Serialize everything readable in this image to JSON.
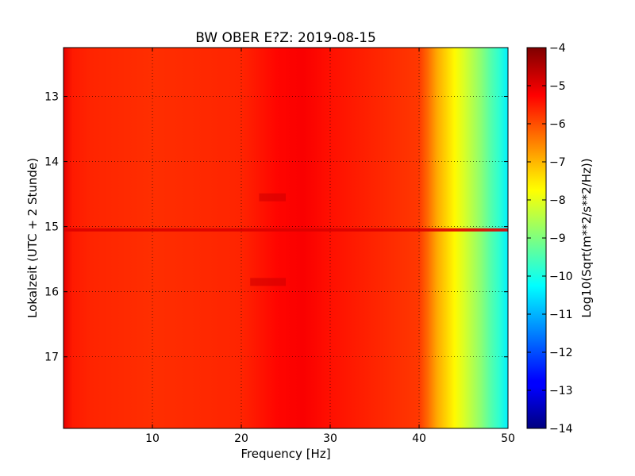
{
  "chart_data": {
    "type": "heatmap",
    "title": "BW OBER E?Z: 2019-08-15",
    "xlabel": "Frequency [Hz]",
    "ylabel": "Lokalzeit (UTC + 2 Stunde)",
    "xlim": [
      0,
      50
    ],
    "ylim": [
      12.25,
      18.1
    ],
    "y_inverted": true,
    "grid": true,
    "x_ticks": [
      10,
      20,
      30,
      40,
      50
    ],
    "y_ticks": [
      13,
      14,
      15,
      16,
      17
    ],
    "colormap": "jet",
    "colorbar": {
      "label": "Log10(Sqrt(m**2/s**2/Hz))",
      "range": [
        -14,
        -4
      ],
      "ticks": [
        -4,
        -5,
        -6,
        -7,
        -8,
        -9,
        -10,
        -11,
        -12,
        -13,
        -14
      ]
    },
    "value_profile_vs_frequency": {
      "frequency_hz": [
        0,
        1,
        3,
        10,
        20,
        24,
        27,
        30,
        35,
        40,
        41,
        42,
        43,
        44,
        45,
        46,
        47,
        48,
        49,
        50
      ],
      "log10_amplitude": [
        -5.0,
        -5.5,
        -5.6,
        -5.7,
        -5.6,
        -5.3,
        -5.2,
        -5.4,
        -5.6,
        -5.8,
        -6.3,
        -6.9,
        -7.3,
        -7.7,
        -8.1,
        -8.5,
        -8.9,
        -9.4,
        -9.8,
        -10.4
      ]
    },
    "noted_features": [
      {
        "time": 15.05,
        "frequency_range_hz": [
          0,
          50
        ],
        "log10_amplitude": -4.9
      },
      {
        "time": 14.55,
        "frequency_range_hz": [
          22,
          25
        ],
        "log10_amplitude": -4.8
      },
      {
        "time": 15.85,
        "frequency_range_hz": [
          21,
          25
        ],
        "log10_amplitude": -4.8
      }
    ]
  }
}
